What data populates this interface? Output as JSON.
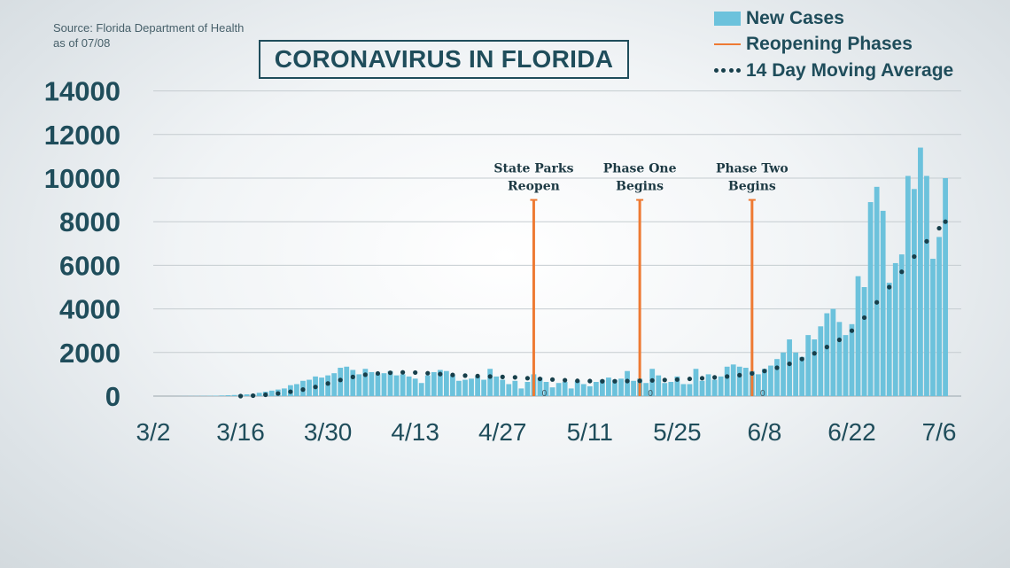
{
  "source": {
    "line1": "Source: Florida Department of Health",
    "line2": "as of 07/08"
  },
  "title": "CORONAVIRUS IN FLORIDA",
  "legend": {
    "new_cases": "New Cases",
    "phases": "Reopening Phases",
    "average": "14 Day Moving Average"
  },
  "colors": {
    "bar": "#6cc2dc",
    "phase_line": "#ee7a33",
    "average": "#173f4b",
    "text": "#1f4d5b",
    "grid": "#c5ccd0"
  },
  "chart_data": {
    "type": "bar",
    "title": "CORONAVIRUS IN FLORIDA",
    "x_start": "3/2",
    "x_end": "7/6",
    "ylim": [
      0,
      14000
    ],
    "y_ticks": [
      0,
      2000,
      4000,
      6000,
      8000,
      10000,
      12000,
      14000
    ],
    "x_ticks": [
      "3/2",
      "3/16",
      "3/30",
      "4/13",
      "4/27",
      "5/11",
      "5/25",
      "6/8",
      "6/22",
      "7/6"
    ],
    "grid": true,
    "legend_position": "top-right",
    "series": [
      {
        "name": "New Cases",
        "type": "bar",
        "values": [
          0,
          0,
          0,
          0,
          2,
          5,
          8,
          10,
          12,
          15,
          20,
          30,
          40,
          50,
          70,
          80,
          90,
          150,
          200,
          250,
          300,
          350,
          500,
          550,
          700,
          750,
          900,
          850,
          950,
          1050,
          1300,
          1350,
          1200,
          1000,
          1250,
          1100,
          1000,
          1050,
          1150,
          950,
          1000,
          900,
          800,
          600,
          950,
          1100,
          1200,
          1150,
          950,
          700,
          750,
          800,
          900,
          750,
          1250,
          900,
          750,
          550,
          700,
          350,
          650,
          1000,
          850,
          650,
          400,
          600,
          650,
          350,
          700,
          550,
          450,
          650,
          750,
          850,
          750,
          800,
          1150,
          700,
          800,
          600,
          1250,
          950,
          600,
          650,
          900,
          550,
          550,
          1250,
          700,
          1000,
          750,
          900,
          1350,
          1450,
          1350,
          1300,
          1150,
          1000,
          1250,
          1400,
          1700,
          2000,
          2600,
          2000,
          1800,
          2800,
          2600,
          3200,
          3800,
          4000,
          3400,
          2800,
          3300,
          5500,
          5000,
          8900,
          9600,
          8500,
          5200,
          6100,
          6500,
          10100,
          9500,
          11400,
          10100,
          6300,
          7300,
          10000
        ]
      },
      {
        "name": "14 Day Moving Average",
        "type": "line",
        "points": [
          [
            14,
            0
          ],
          [
            16,
            20
          ],
          [
            18,
            60
          ],
          [
            20,
            120
          ],
          [
            22,
            200
          ],
          [
            24,
            300
          ],
          [
            26,
            420
          ],
          [
            28,
            580
          ],
          [
            30,
            740
          ],
          [
            32,
            880
          ],
          [
            34,
            980
          ],
          [
            36,
            1040
          ],
          [
            38,
            1070
          ],
          [
            40,
            1090
          ],
          [
            42,
            1080
          ],
          [
            44,
            1050
          ],
          [
            46,
            1010
          ],
          [
            48,
            970
          ],
          [
            50,
            940
          ],
          [
            52,
            920
          ],
          [
            54,
            900
          ],
          [
            56,
            880
          ],
          [
            58,
            860
          ],
          [
            60,
            820
          ],
          [
            62,
            790
          ],
          [
            64,
            760
          ],
          [
            66,
            730
          ],
          [
            68,
            700
          ],
          [
            70,
            690
          ],
          [
            72,
            680
          ],
          [
            74,
            680
          ],
          [
            76,
            690
          ],
          [
            78,
            700
          ],
          [
            80,
            720
          ],
          [
            82,
            740
          ],
          [
            84,
            760
          ],
          [
            86,
            790
          ],
          [
            88,
            820
          ],
          [
            90,
            860
          ],
          [
            92,
            900
          ],
          [
            94,
            960
          ],
          [
            96,
            1040
          ],
          [
            98,
            1150
          ],
          [
            100,
            1300
          ],
          [
            102,
            1480
          ],
          [
            104,
            1700
          ],
          [
            106,
            1960
          ],
          [
            108,
            2250
          ],
          [
            110,
            2580
          ],
          [
            112,
            3000
          ],
          [
            114,
            3600
          ],
          [
            116,
            4300
          ],
          [
            118,
            5000
          ],
          [
            120,
            5700
          ],
          [
            122,
            6400
          ],
          [
            124,
            7100
          ],
          [
            126,
            7700
          ],
          [
            127,
            8000
          ]
        ]
      }
    ],
    "phases": [
      {
        "day": 61,
        "label_line1": "State Parks",
        "label_line2": "Reopen",
        "top": 9000
      },
      {
        "day": 78,
        "label_line1": "Phase One",
        "label_line2": "Begins",
        "top": 9000
      },
      {
        "day": 96,
        "label_line1": "Phase Two",
        "label_line2": "Begins",
        "top": 9000
      }
    ],
    "annotations": [
      "0",
      "0",
      "0"
    ]
  }
}
